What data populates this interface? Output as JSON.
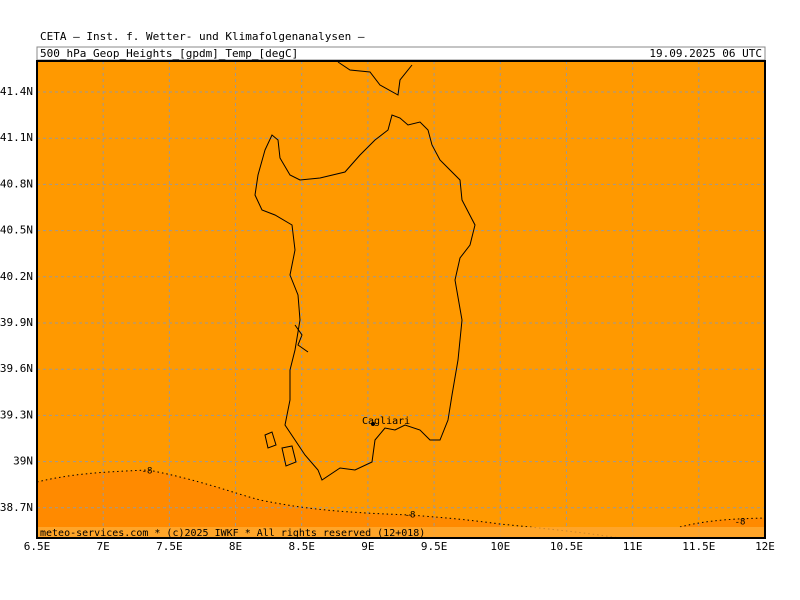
{
  "header": {
    "title": "CETA — Inst. f. Wetter- und Klimafolgenanalysen —",
    "field": "500_hPa_Geop_Heights_[gpdm]_Temp_[degC]",
    "time": "19.09.2025 06 UTC"
  },
  "map": {
    "lat_labels": [
      "41.4N",
      "41.1N",
      "40.8N",
      "40.5N",
      "40.2N",
      "39.9N",
      "39.6N",
      "39.3N",
      "39N",
      "38.7N"
    ],
    "lon_labels": [
      "6.5E",
      "7E",
      "7.5E",
      "8E",
      "8.5E",
      "9E",
      "9.5E",
      "10E",
      "10.5E",
      "11E",
      "11.5E",
      "12E"
    ],
    "places": [
      "Cagliari"
    ],
    "contour_labels": [
      "-8",
      "-8",
      "-8"
    ]
  },
  "footer": "meteo-services.com * (c)2025 IWKF * All rights reserved (12+018)"
}
